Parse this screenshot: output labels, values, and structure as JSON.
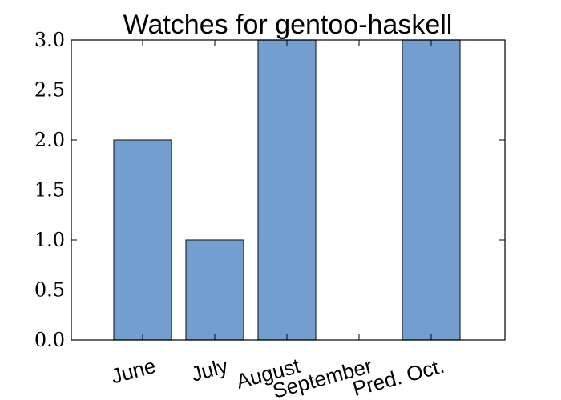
{
  "chart_data": {
    "type": "bar",
    "title": "Watches for gentoo-haskell",
    "xlabel": "",
    "ylabel": "",
    "categories": [
      "June",
      "July",
      "August",
      "September",
      "Pred. Oct."
    ],
    "values": [
      2,
      1,
      3,
      0,
      3
    ],
    "ylim": [
      0,
      3
    ],
    "yticks": [
      "0.0",
      "0.5",
      "1.0",
      "1.5",
      "2.0",
      "2.5",
      "3.0"
    ],
    "bar_color": "#729fcf",
    "grid": false,
    "legend": "none"
  }
}
